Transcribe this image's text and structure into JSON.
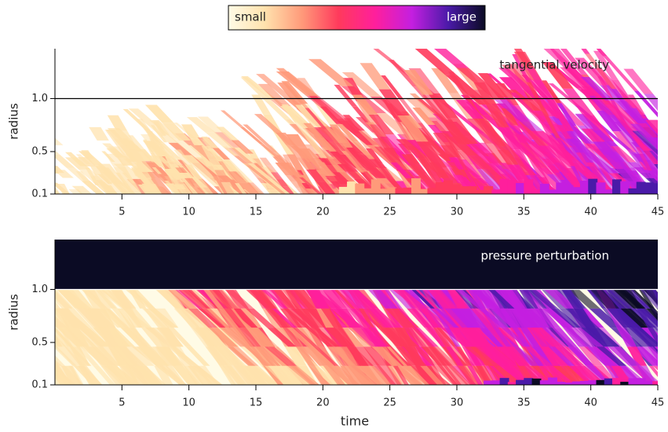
{
  "colorbar": {
    "low_label": "small",
    "high_label": "large",
    "colormap": [
      "#fffbe6",
      "#ffe2ad",
      "#ff9a7a",
      "#ff3a5c",
      "#ff1f9c",
      "#c41fe0",
      "#4a1aa8",
      "#0b0b24"
    ]
  },
  "chart_data": [
    {
      "type": "heatmap",
      "title": "tangential velocity",
      "y_label": "radius",
      "xlim": [
        0,
        45
      ],
      "xticks": [
        5,
        10,
        15,
        20,
        25,
        30,
        35,
        40,
        45
      ],
      "ylim": [
        0.1,
        1.47
      ],
      "yticks": [
        0.1,
        0.5,
        {
          "value": 1,
          "label": "1.0"
        }
      ],
      "reference_line": 1,
      "reference_color": "#000000",
      "background": "#ffffff"
    },
    {
      "type": "heatmap",
      "title": "pressure perturbation",
      "y_label": "radius",
      "x_label": "time",
      "xlim": [
        0,
        45
      ],
      "xticks": [
        5,
        10,
        15,
        20,
        25,
        30,
        35,
        40,
        45
      ],
      "ylim": [
        0.1,
        1.47
      ],
      "yticks": [
        0.1,
        0.5,
        {
          "value": 1,
          "label": "1.0"
        }
      ],
      "reference_line": 1,
      "reference_color": "#ffffff",
      "background": "#fffbe6"
    }
  ]
}
